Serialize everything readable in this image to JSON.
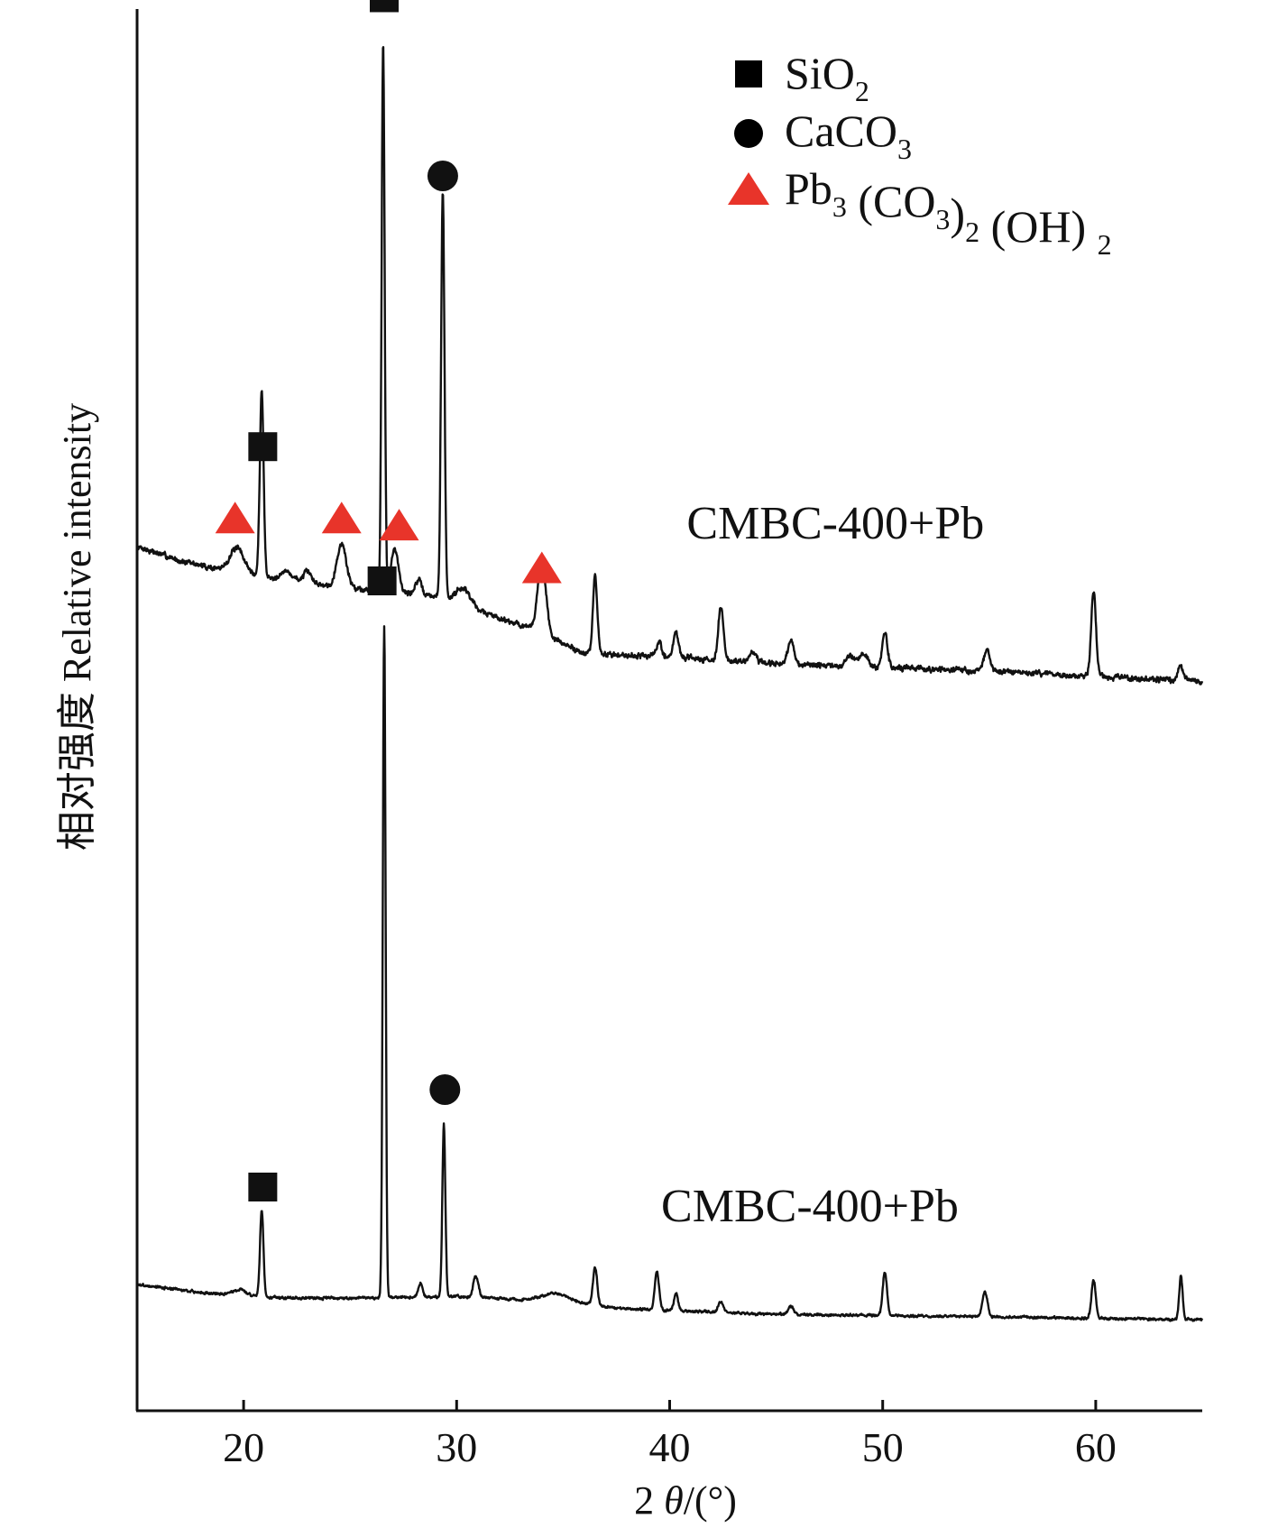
{
  "chart_data": {
    "type": "line",
    "title": "",
    "xlabel": {
      "prefix": "2 ",
      "symbol": "θ",
      "suffix": "/(°)"
    },
    "ylabel": "相对强度 Relative intensity",
    "xlim": [
      15,
      65
    ],
    "xticks": [
      20,
      30,
      40,
      50,
      60
    ],
    "grid": false,
    "legend": {
      "position": "top-right",
      "entries": [
        {
          "marker": "square",
          "color": "#000000",
          "parts": [
            [
              "Si",
              "n"
            ],
            [
              "O",
              "n"
            ],
            [
              "2",
              "sub"
            ]
          ]
        },
        {
          "marker": "circle",
          "color": "#000000",
          "parts": [
            [
              "CaCO",
              "n"
            ],
            [
              "3",
              "sub"
            ]
          ]
        },
        {
          "marker": "triangle",
          "color": "#e8342a",
          "parts": [
            [
              "Pb",
              "n"
            ],
            [
              "3",
              "sub"
            ],
            [
              " (CO",
              "n"
            ],
            [
              "3",
              "sub"
            ],
            [
              ")",
              "n"
            ],
            [
              "2",
              "sub"
            ],
            [
              " (OH) ",
              "n"
            ],
            [
              "2",
              "sub"
            ]
          ]
        }
      ]
    },
    "series": [
      {
        "name": "CMBC-400+Pb",
        "label": "CMBC-400+Pb",
        "label_anchor_x": 40.8,
        "seed": 7,
        "noise": 0.55,
        "baseline": [
          [
            15,
            18
          ],
          [
            17,
            16
          ],
          [
            20,
            14
          ],
          [
            24,
            12.5
          ],
          [
            29,
            11
          ],
          [
            33,
            7
          ],
          [
            36,
            3
          ],
          [
            40,
            2.5
          ],
          [
            45,
            1.5
          ],
          [
            55,
            0.5
          ],
          [
            65,
            -1
          ]
        ],
        "peaks": [
          {
            "x": 19.7,
            "h": 3.5,
            "w": 0.35
          },
          {
            "x": 20.85,
            "h": 26,
            "w": 0.09
          },
          {
            "x": 22.0,
            "h": 1.2,
            "w": 0.3
          },
          {
            "x": 23.0,
            "h": 1.5,
            "w": 0.2
          },
          {
            "x": 24.6,
            "h": 6,
            "w": 0.22
          },
          {
            "x": 26.55,
            "h": 77,
            "w": 0.07
          },
          {
            "x": 27.1,
            "h": 6,
            "w": 0.18
          },
          {
            "x": 28.2,
            "h": 2.0,
            "w": 0.15
          },
          {
            "x": 29.35,
            "h": 57,
            "w": 0.08
          },
          {
            "x": 30.3,
            "h": 2.5,
            "w": 0.35
          },
          {
            "x": 34.0,
            "h": 10,
            "w": 0.2
          },
          {
            "x": 36.5,
            "h": 11,
            "w": 0.1
          },
          {
            "x": 39.5,
            "h": 2,
            "w": 0.12
          },
          {
            "x": 40.3,
            "h": 3.5,
            "w": 0.12
          },
          {
            "x": 42.4,
            "h": 7.5,
            "w": 0.12
          },
          {
            "x": 43.9,
            "h": 1.5,
            "w": 0.15
          },
          {
            "x": 45.7,
            "h": 3.5,
            "w": 0.14
          },
          {
            "x": 48.5,
            "h": 1.5,
            "w": 0.2
          },
          {
            "x": 49.1,
            "h": 1.8,
            "w": 0.2
          },
          {
            "x": 50.1,
            "h": 5,
            "w": 0.12
          },
          {
            "x": 54.9,
            "h": 3,
            "w": 0.14
          },
          {
            "x": 59.9,
            "h": 12,
            "w": 0.11
          },
          {
            "x": 64.0,
            "h": 2,
            "w": 0.12
          }
        ],
        "annotations": [
          {
            "marker": "square",
            "x": 20.9,
            "y": 32
          },
          {
            "marker": "square",
            "x": 26.6,
            "y": 95
          },
          {
            "marker": "circle",
            "x": 29.35,
            "y": 70
          },
          {
            "marker": "triangle",
            "x": 19.6,
            "y": 22
          },
          {
            "marker": "triangle",
            "x": 24.6,
            "y": 22
          },
          {
            "marker": "triangle",
            "x": 27.3,
            "y": 21
          },
          {
            "marker": "triangle",
            "x": 34.0,
            "y": 15
          }
        ]
      },
      {
        "name": "CMBC-400+Pb",
        "label": "CMBC-400+Pb",
        "label_anchor_x": 39.6,
        "seed": 3,
        "noise": 0.35,
        "baseline": [
          [
            15,
            4
          ],
          [
            18,
            2.5
          ],
          [
            22,
            1.5
          ],
          [
            25,
            1.5
          ],
          [
            30,
            1.8
          ],
          [
            33,
            1.2
          ],
          [
            35,
            0.8
          ],
          [
            38,
            -0.5
          ],
          [
            45,
            -1.5
          ],
          [
            55,
            -2
          ],
          [
            65,
            -2.5
          ]
        ],
        "peaks": [
          {
            "x": 19.8,
            "h": 1.0,
            "w": 0.3
          },
          {
            "x": 20.85,
            "h": 16,
            "w": 0.08
          },
          {
            "x": 26.6,
            "h": 124,
            "w": 0.065
          },
          {
            "x": 28.3,
            "h": 2.5,
            "w": 0.1
          },
          {
            "x": 29.4,
            "h": 32,
            "w": 0.07
          },
          {
            "x": 30.9,
            "h": 4,
            "w": 0.12
          },
          {
            "x": 34.6,
            "h": 1.5,
            "w": 0.6
          },
          {
            "x": 36.5,
            "h": 7,
            "w": 0.1
          },
          {
            "x": 39.4,
            "h": 7,
            "w": 0.1
          },
          {
            "x": 40.3,
            "h": 3,
            "w": 0.1
          },
          {
            "x": 42.4,
            "h": 2,
            "w": 0.12
          },
          {
            "x": 45.7,
            "h": 1.5,
            "w": 0.12
          },
          {
            "x": 50.1,
            "h": 8,
            "w": 0.1
          },
          {
            "x": 54.8,
            "h": 4.5,
            "w": 0.12
          },
          {
            "x": 59.9,
            "h": 7,
            "w": 0.1
          },
          {
            "x": 64.0,
            "h": 8,
            "w": 0.08
          }
        ],
        "annotations": [
          {
            "marker": "square",
            "x": 20.9,
            "y": 22
          },
          {
            "marker": "square",
            "x": 26.5,
            "y": 134
          },
          {
            "marker": "circle",
            "x": 29.45,
            "y": 40
          }
        ]
      }
    ]
  }
}
